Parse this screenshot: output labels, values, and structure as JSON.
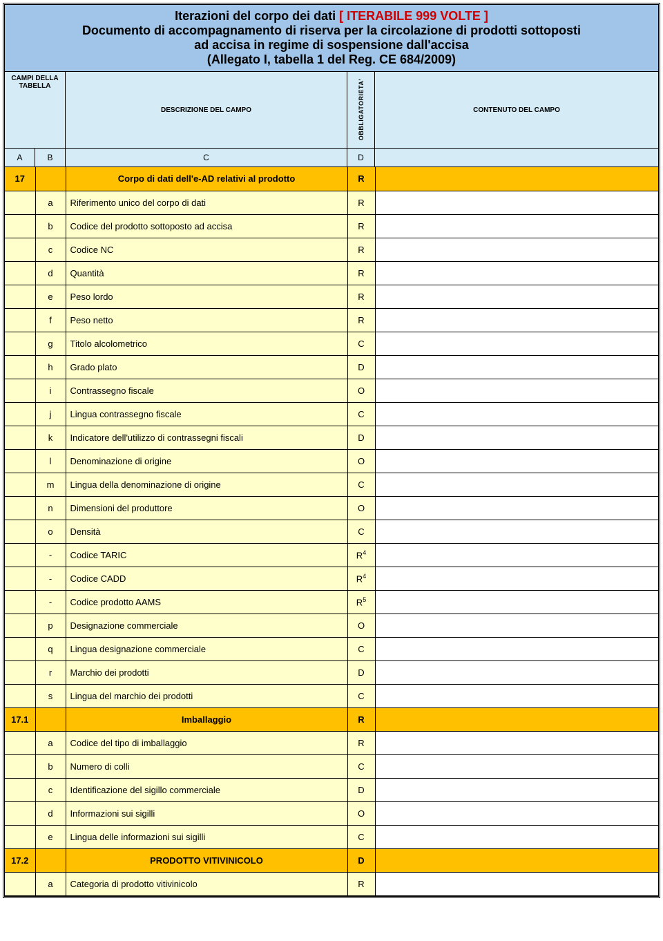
{
  "title": {
    "line1_a": "Iterazioni del corpo dei dati ",
    "line1_b": "[ ITERABILE 999 VOLTE ]",
    "line2": "Documento di accompagnamento di riserva per la circolazione di prodotti sottoposti",
    "line3": "ad accisa in regime di sospensione dall'accisa",
    "line4": "(Allegato I, tabella 1 del Reg. CE 684/2009)"
  },
  "col_headers": {
    "ab": "CAMPI DELLA TABELLA",
    "c": "DESCRIZIONE DEL CAMPO",
    "d": "OBBLIGATORIETA'",
    "e": "CONTENUTO DEL CAMPO"
  },
  "letters": {
    "a": "A",
    "b": "B",
    "c": "C",
    "d": "D",
    "e": ""
  },
  "rows": [
    {
      "type": "section",
      "a": "17",
      "c": "Corpo di dati dell'e-AD relativi al prodotto",
      "d": "R"
    },
    {
      "type": "data",
      "b": "a",
      "c": "Riferimento unico del corpo di dati",
      "d": "R"
    },
    {
      "type": "data",
      "b": "b",
      "c": "Codice del prodotto sottoposto ad accisa",
      "d": "R"
    },
    {
      "type": "data",
      "b": "c",
      "c": "Codice NC",
      "d": "R"
    },
    {
      "type": "data",
      "b": "d",
      "c": "Quantità",
      "d": "R"
    },
    {
      "type": "data",
      "b": "e",
      "c": "Peso lordo",
      "d": "R"
    },
    {
      "type": "data",
      "b": "f",
      "c": "Peso netto",
      "d": "R"
    },
    {
      "type": "data",
      "b": "g",
      "c": "Titolo alcolometrico",
      "d": "C"
    },
    {
      "type": "data",
      "b": "h",
      "c": "Grado plato",
      "d": "D"
    },
    {
      "type": "data",
      "b": "i",
      "c": "Contrassegno fiscale",
      "d": "O"
    },
    {
      "type": "data",
      "b": "j",
      "c": "Lingua contrassegno fiscale",
      "d": "C"
    },
    {
      "type": "data",
      "b": "k",
      "c": "Indicatore dell'utilizzo di contrassegni fiscali",
      "d": "D"
    },
    {
      "type": "data",
      "b": "l",
      "c": "Denominazione di origine",
      "d": "O"
    },
    {
      "type": "data",
      "b": "m",
      "c": "Lingua della denominazione di origine",
      "d": "C"
    },
    {
      "type": "data",
      "b": "n",
      "c": "Dimensioni del produttore",
      "d": "O"
    },
    {
      "type": "data",
      "b": "o",
      "c": "Densità",
      "d": "C"
    },
    {
      "type": "data",
      "b": "-",
      "c": "Codice TARIC",
      "d": "R",
      "sup": "4"
    },
    {
      "type": "data",
      "b": "-",
      "c": "Codice CADD",
      "d": "R",
      "sup": "4"
    },
    {
      "type": "data",
      "b": "-",
      "c": "Codice prodotto AAMS",
      "d": "R",
      "sup": "5"
    },
    {
      "type": "data",
      "b": "p",
      "c": "Designazione commerciale",
      "d": "O"
    },
    {
      "type": "data",
      "b": "q",
      "c": "Lingua designazione commerciale",
      "d": "C"
    },
    {
      "type": "data",
      "b": "r",
      "c": "Marchio dei prodotti",
      "d": "D"
    },
    {
      "type": "data",
      "b": "s",
      "c": "Lingua del marchio dei prodotti",
      "d": "C"
    },
    {
      "type": "section",
      "a": "17.1",
      "c": "Imballaggio",
      "d": "R"
    },
    {
      "type": "data",
      "b": "a",
      "c": "Codice del tipo di imballaggio",
      "d": "R"
    },
    {
      "type": "data",
      "b": "b",
      "c": "Numero di colli",
      "d": "C"
    },
    {
      "type": "data",
      "b": "c",
      "c": "Identificazione del sigillo commerciale",
      "d": "D"
    },
    {
      "type": "data",
      "b": "d",
      "c": "Informazioni sui sigilli",
      "d": "O"
    },
    {
      "type": "data",
      "b": "e",
      "c": "Lingua delle informazioni sui sigilli",
      "d": "C"
    },
    {
      "type": "section",
      "a": "17.2",
      "c": "PRODOTTO VITIVINICOLO",
      "d": "D"
    },
    {
      "type": "data",
      "b": "a",
      "c": "Categoria di prodotto vitivinicolo",
      "d": "R"
    }
  ],
  "colors": {
    "title_bg": "#a0c5e8",
    "header_bg": "#d5ebf5",
    "section_bg": "#ffc000",
    "data_bg": "#ffffcc",
    "iter_color": "#d00000",
    "border": "#000000"
  }
}
